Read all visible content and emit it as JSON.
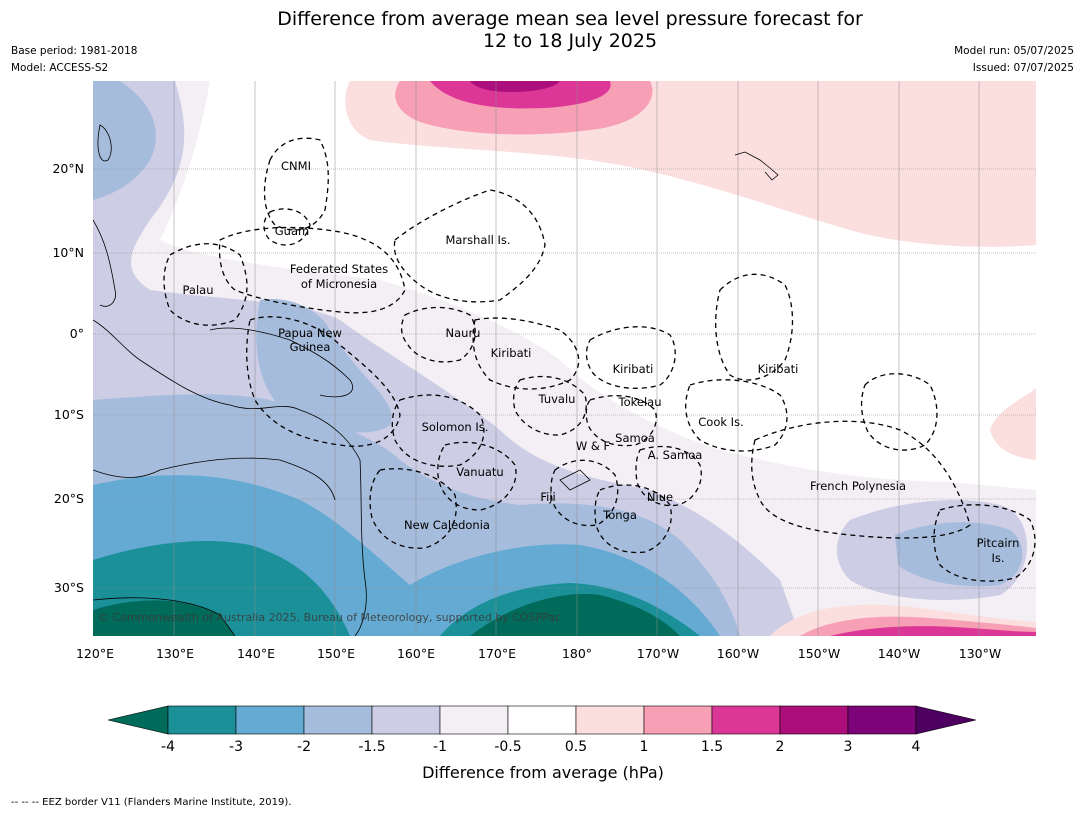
{
  "title_line1": "Difference from average mean sea level pressure forecast for",
  "title_line2": "12 to 18 July 2025",
  "base_period": "Base period: 1981-2018",
  "model": "Model: ACCESS-S2",
  "model_run": "Model run: 05/07/2025",
  "issued": "Issued: 07/07/2025",
  "copyright": "© Commonwealth of Australia 2025, Bureau of Meteorology, supported by COSPPac",
  "footer": "--  --  -- EEZ border V11 (Flanders Marine Institute, 2019).",
  "map": {
    "lon_labels": [
      "120°E",
      "130°E",
      "140°E",
      "150°E",
      "160°E",
      "170°E",
      "180°",
      "170°W",
      "160°W",
      "150°W",
      "140°W",
      "130°W"
    ],
    "lat_labels": [
      "20°N",
      "10°N",
      "0°",
      "10°S",
      "20°S",
      "30°S"
    ],
    "regions": [
      "CNMI",
      "Guam",
      "Marshall Is.",
      "Federated States",
      "of Micronesia",
      "Palau",
      "Nauru",
      "Papua New",
      "Guinea",
      "Kiribati",
      "Kiribati",
      "Kiribati",
      "Tuvalu",
      "Tokelau",
      "Cook Is.",
      "Solomon Is.",
      "W & F",
      "Samoa",
      "A. Samoa",
      "Vanuatu",
      "Fiji",
      "Niue",
      "Tonga",
      "New Caledonia",
      "French Polynesia",
      "Pitcairn",
      "Is."
    ]
  },
  "colorbar": {
    "label": "Difference from average (hPa)",
    "ticks": [
      "-4",
      "-3",
      "-2",
      "-1.5",
      "-1",
      "-0.5",
      "0.5",
      "1",
      "1.5",
      "2",
      "3",
      "4"
    ],
    "colors": [
      "#006b5a",
      "#1b9099",
      "#64aad2",
      "#a6bcdc",
      "#cdcde6",
      "#f4eef5",
      "#ffffff",
      "#fbdfdf",
      "#f79fb5",
      "#dc3796",
      "#ac0f7b",
      "#7d0378",
      "#4d0060"
    ]
  }
}
